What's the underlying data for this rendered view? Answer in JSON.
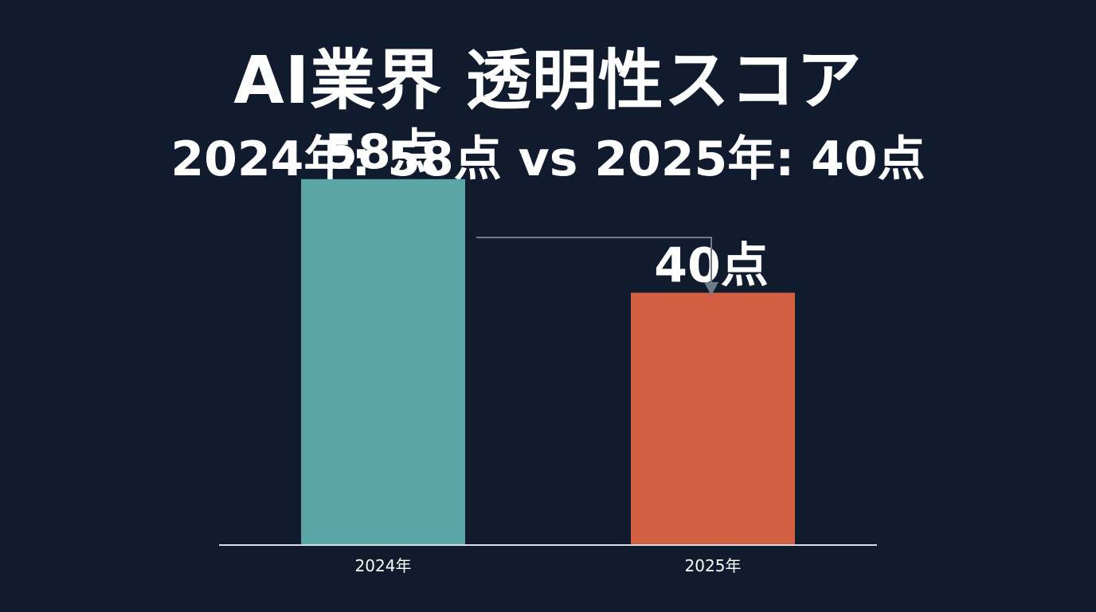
{
  "title": "AI業界 透明性スコア",
  "subtitle": "2024年: 58点 vs 2025年: 40点",
  "colors": {
    "background": "#111b2e",
    "bar_2024": "#5aa6a6",
    "bar_2025": "#d35f42",
    "axis": "#d9dde3",
    "arrow": "#6e7a89",
    "text": "#ffffff"
  },
  "chart_data": {
    "type": "bar",
    "categories": [
      "2024年",
      "2025年"
    ],
    "values": [
      58,
      40
    ],
    "data_labels": [
      "58点",
      "40点"
    ],
    "ylim": [
      0,
      60
    ],
    "grid": false,
    "annotation": "arrow from 2024 bar label to 2025 bar label"
  }
}
